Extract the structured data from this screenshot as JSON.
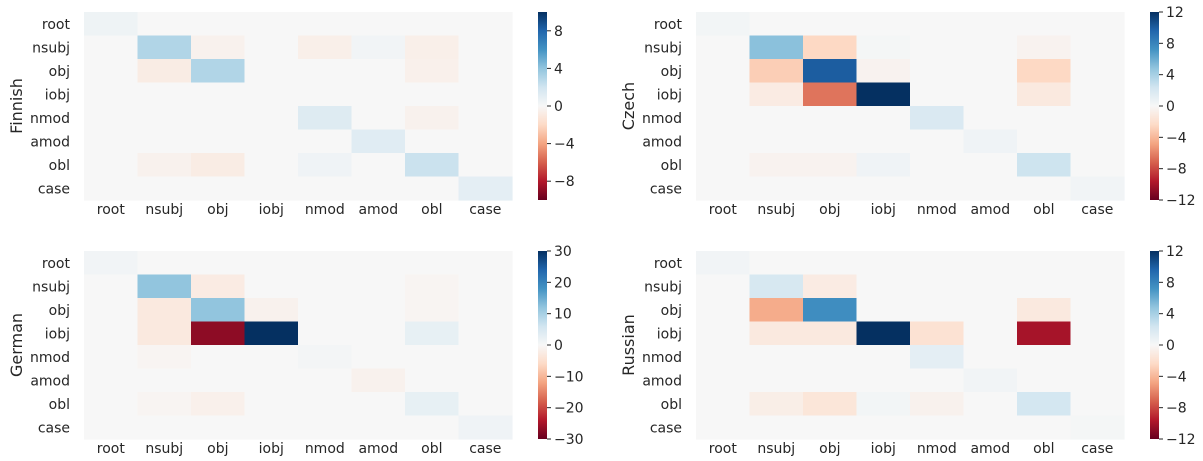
{
  "chart_data": [
    {
      "type": "heatmap",
      "ylabel": "Finnish",
      "rows": [
        "root",
        "nsubj",
        "obj",
        "iobj",
        "nmod",
        "amod",
        "obl",
        "case"
      ],
      "cols": [
        "root",
        "nsubj",
        "obj",
        "iobj",
        "nmod",
        "amod",
        "obl",
        "case"
      ],
      "colorbar": {
        "min": -10,
        "max": 10,
        "ticks": [
          8,
          4,
          0,
          -4,
          -8
        ],
        "tick_labels": [
          "8",
          "4",
          "0",
          "−4",
          "−8"
        ]
      },
      "values": [
        [
          0.5,
          0,
          0,
          0,
          0,
          0,
          0,
          0
        ],
        [
          0,
          3,
          -0.4,
          0,
          -0.6,
          0.3,
          -0.6,
          0
        ],
        [
          0,
          -0.8,
          3,
          0,
          0,
          0,
          -0.5,
          0
        ],
        [
          0,
          0,
          0,
          0,
          0,
          0,
          0,
          0
        ],
        [
          0,
          0,
          0,
          0,
          1.3,
          0,
          -0.4,
          0
        ],
        [
          0,
          0,
          0,
          0,
          0,
          1.2,
          0,
          0
        ],
        [
          0,
          -0.4,
          -0.8,
          0,
          0.4,
          0,
          2.2,
          0
        ],
        [
          0,
          0,
          0,
          0,
          0,
          0,
          0,
          1.0
        ]
      ]
    },
    {
      "type": "heatmap",
      "ylabel": "Czech",
      "rows": [
        "root",
        "nsubj",
        "obj",
        "iobj",
        "nmod",
        "amod",
        "obl",
        "case"
      ],
      "cols": [
        "root",
        "nsubj",
        "obj",
        "iobj",
        "nmod",
        "amod",
        "obl",
        "case"
      ],
      "colorbar": {
        "min": -12,
        "max": 12,
        "ticks": [
          12,
          8,
          4,
          0,
          -4,
          -8,
          -12
        ],
        "tick_labels": [
          "12",
          "8",
          "4",
          "0",
          "−4",
          "−8",
          "−12"
        ]
      },
      "values": [
        [
          0.3,
          0,
          0,
          0,
          0,
          0,
          0,
          0
        ],
        [
          0,
          5,
          -2.5,
          0.2,
          0,
          0,
          -0.4,
          0
        ],
        [
          0,
          -3,
          10,
          -0.4,
          0,
          0,
          -2.5,
          0
        ],
        [
          0,
          -1,
          -6.5,
          12,
          0,
          0,
          -1.2,
          0
        ],
        [
          0,
          0,
          0,
          0,
          1.8,
          0,
          0,
          0
        ],
        [
          0,
          0,
          0,
          0,
          0,
          0.5,
          0,
          0
        ],
        [
          0,
          -0.4,
          -0.4,
          0.5,
          0,
          0,
          2.5,
          0
        ],
        [
          0,
          0,
          0,
          0,
          0,
          0,
          0,
          0.4
        ]
      ]
    },
    {
      "type": "heatmap",
      "ylabel": "German",
      "rows": [
        "root",
        "nsubj",
        "obj",
        "iobj",
        "nmod",
        "amod",
        "obl",
        "case"
      ],
      "cols": [
        "root",
        "nsubj",
        "obj",
        "iobj",
        "nmod",
        "amod",
        "obl",
        "case"
      ],
      "colorbar": {
        "min": -30,
        "max": 30,
        "ticks": [
          30,
          20,
          10,
          0,
          -10,
          -20,
          -30
        ],
        "tick_labels": [
          "30",
          "20",
          "10",
          "0",
          "−10",
          "−20",
          "−30"
        ]
      },
      "values": [
        [
          1,
          0,
          0,
          0,
          0,
          0,
          0,
          0
        ],
        [
          0,
          12,
          -2.5,
          0,
          0,
          0,
          -0.6,
          0
        ],
        [
          0,
          -3,
          12,
          -1.2,
          0,
          0,
          -0.6,
          0
        ],
        [
          0,
          -3,
          -27,
          30,
          0,
          0,
          2.5,
          0
        ],
        [
          0,
          -0.6,
          0,
          0,
          0.6,
          0,
          0,
          0
        ],
        [
          0,
          0,
          0,
          0,
          0,
          -1.2,
          0,
          0
        ],
        [
          0,
          -0.6,
          -1.5,
          0,
          0,
          0,
          2.5,
          0
        ],
        [
          0,
          0,
          0,
          0,
          0,
          0,
          0,
          1.2
        ]
      ]
    },
    {
      "type": "heatmap",
      "ylabel": "Russian",
      "rows": [
        "root",
        "nsubj",
        "obj",
        "iobj",
        "nmod",
        "amod",
        "obl",
        "case"
      ],
      "cols": [
        "root",
        "nsubj",
        "obj",
        "iobj",
        "nmod",
        "amod",
        "obl",
        "case"
      ],
      "colorbar": {
        "min": -12,
        "max": 12,
        "ticks": [
          12,
          8,
          4,
          0,
          -4,
          -8,
          -12
        ],
        "tick_labels": [
          "12",
          "8",
          "4",
          "0",
          "−4",
          "−8",
          "−12"
        ]
      },
      "values": [
        [
          0.4,
          0,
          0,
          0,
          0,
          0,
          0,
          0
        ],
        [
          0,
          2,
          -1,
          0,
          0,
          0,
          0,
          0
        ],
        [
          0,
          -4.5,
          7.5,
          0,
          0,
          0,
          -1.2,
          0
        ],
        [
          0,
          -1.2,
          -1.2,
          12,
          -1.8,
          0,
          -10,
          0
        ],
        [
          0,
          0,
          0,
          0,
          1.2,
          0,
          0,
          0
        ],
        [
          0,
          0,
          0,
          0,
          0,
          0.4,
          0,
          0
        ],
        [
          0,
          -0.8,
          -1.5,
          0.3,
          -0.5,
          0,
          2.2,
          0
        ],
        [
          0,
          0,
          0,
          0,
          0,
          0,
          0,
          0.2
        ]
      ]
    }
  ]
}
